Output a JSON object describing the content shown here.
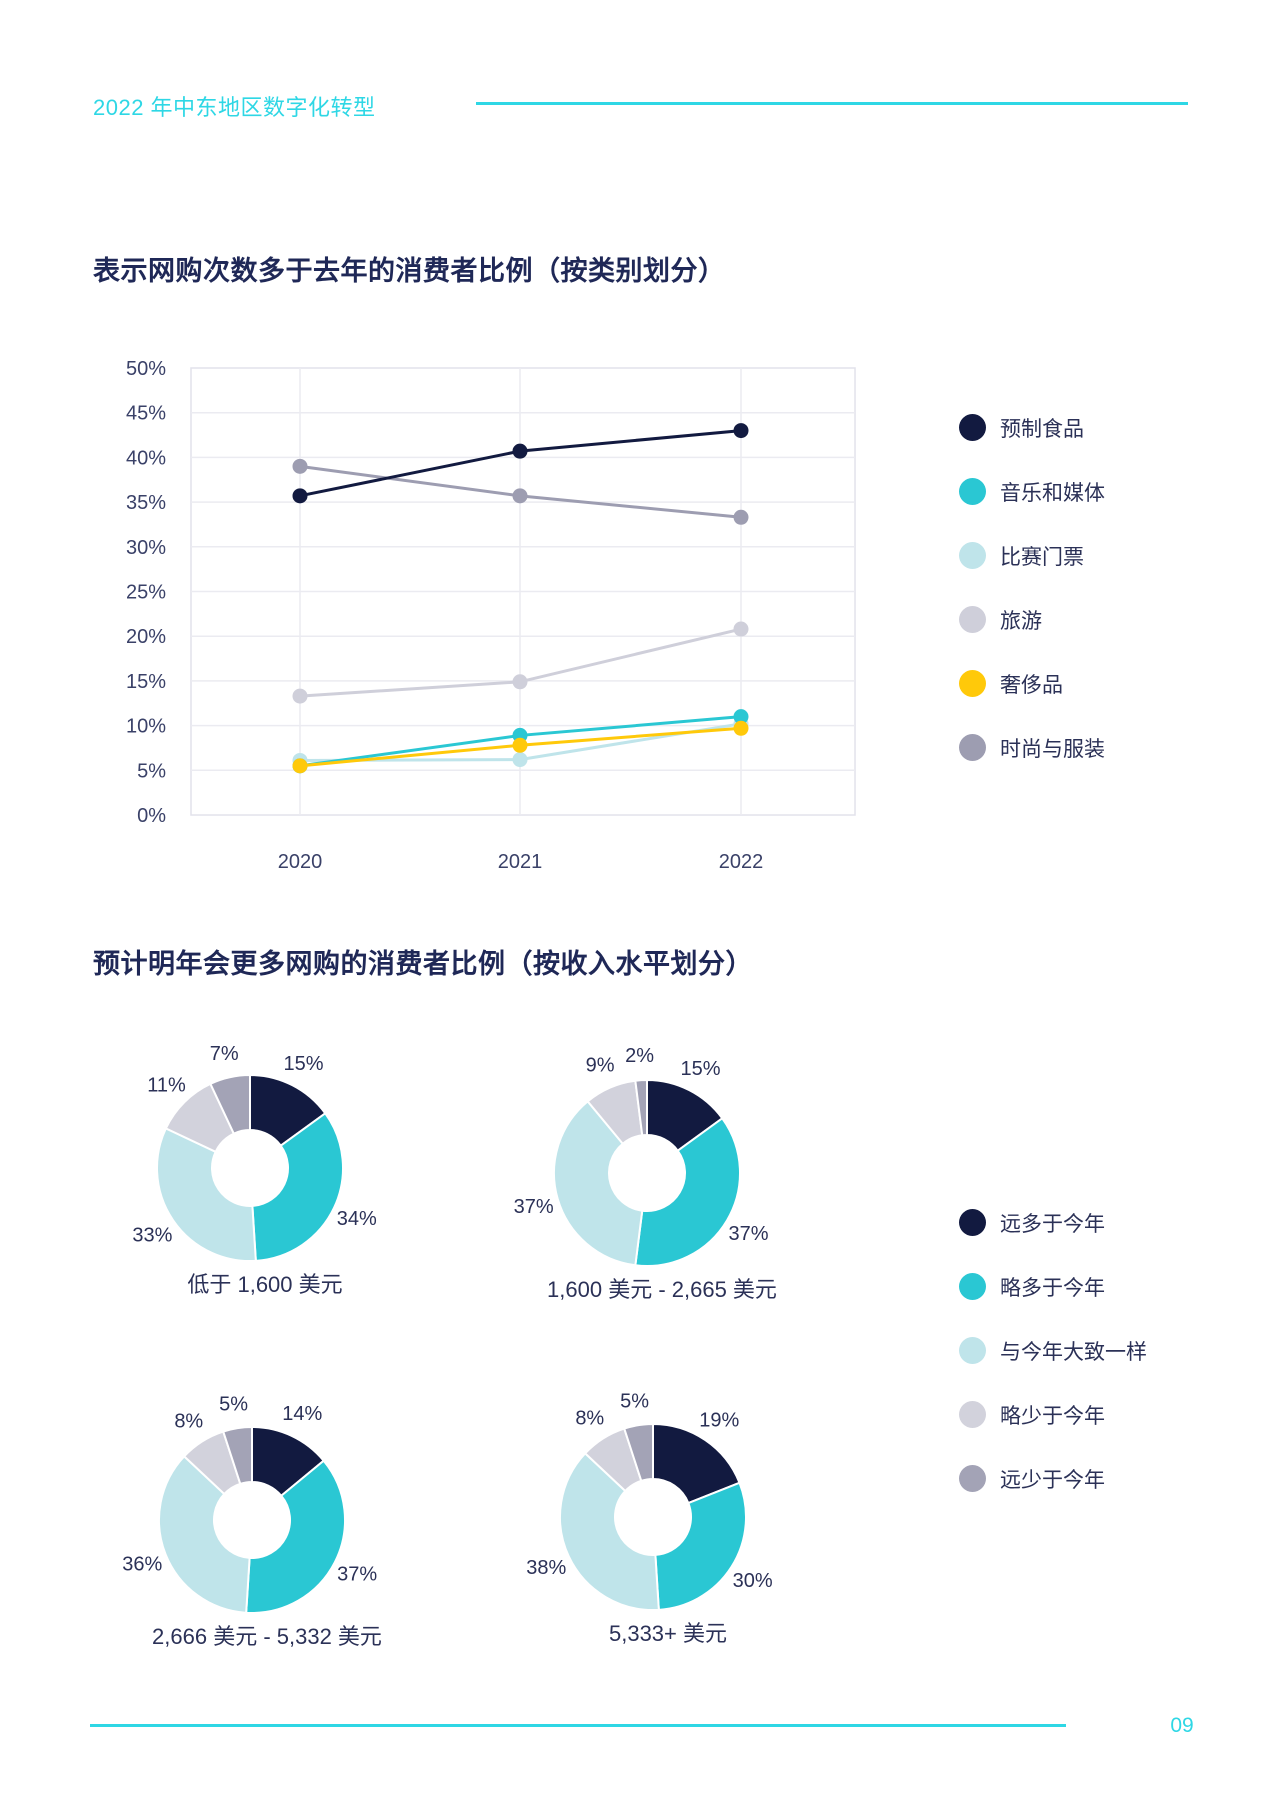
{
  "page": {
    "header": {
      "title": "2022 年中东地区数字化转型"
    },
    "footer": {
      "page_number": "09"
    }
  },
  "colors": {
    "accent_cyan": "#2ED7E5",
    "title_text": "#1F2857",
    "axis_text": "#3A4168",
    "label_text": "#2B3157",
    "grid": "#EBEBF1",
    "plot_border": "#E2E2EB",
    "navy": "#121A40",
    "teal": "#2AC7D3",
    "light_teal": "#BFE4EA",
    "light_gray": "#D2D2DC",
    "gray": "#A3A3B6",
    "yellow": "#FFC90A",
    "lavender_gray": "#CFCFDA",
    "fashion_gray": "#9D9DB1"
  },
  "chart_data": [
    {
      "type": "line",
      "title": "表示网购次数多于去年的消费者比例（按类别划分）",
      "x": [
        "2020",
        "2021",
        "2022"
      ],
      "ylim": [
        0,
        50
      ],
      "ytick_step": 5,
      "ytick_suffix": "%",
      "grid": true,
      "legend_position": "right",
      "series": [
        {
          "name": "预制食品",
          "color": "#121A40",
          "values": [
            35.7,
            40.7,
            43.0
          ]
        },
        {
          "name": "音乐和媒体",
          "color": "#2AC7D3",
          "values": [
            5.5,
            8.9,
            11.0
          ]
        },
        {
          "name": "比赛门票",
          "color": "#BFE4EA",
          "values": [
            6.1,
            6.2,
            10.2
          ]
        },
        {
          "name": "旅游",
          "color": "#CFCFDA",
          "values": [
            13.3,
            14.9,
            20.8
          ]
        },
        {
          "name": "奢侈品",
          "color": "#FFC90A",
          "values": [
            5.5,
            7.8,
            9.7
          ]
        },
        {
          "name": "时尚与服装",
          "color": "#9D9DB1",
          "values": [
            39.0,
            35.7,
            33.3
          ]
        }
      ]
    },
    {
      "type": "pie",
      "title": "预计明年会更多网购的消费者比例（按收入水平划分）",
      "legend": [
        "远多于今年",
        "略多于今年",
        "与今年大致一样",
        "略少于今年",
        "远少于今年"
      ],
      "legend_colors": [
        "#121A40",
        "#2AC7D3",
        "#BFE4EA",
        "#D2D2DC",
        "#A3A3B6"
      ],
      "donuts": [
        {
          "label": "低于 1,600 美元",
          "values": [
            15,
            34,
            33,
            11,
            7
          ]
        },
        {
          "label": "1,600 美元 - 2,665 美元",
          "values": [
            15,
            37,
            37,
            9,
            2
          ]
        },
        {
          "label": "2,666 美元 - 5,332 美元",
          "values": [
            14,
            37,
            36,
            8,
            5
          ]
        },
        {
          "label": "5,333+ 美元",
          "values": [
            19,
            30,
            38,
            8,
            5
          ]
        }
      ]
    }
  ]
}
